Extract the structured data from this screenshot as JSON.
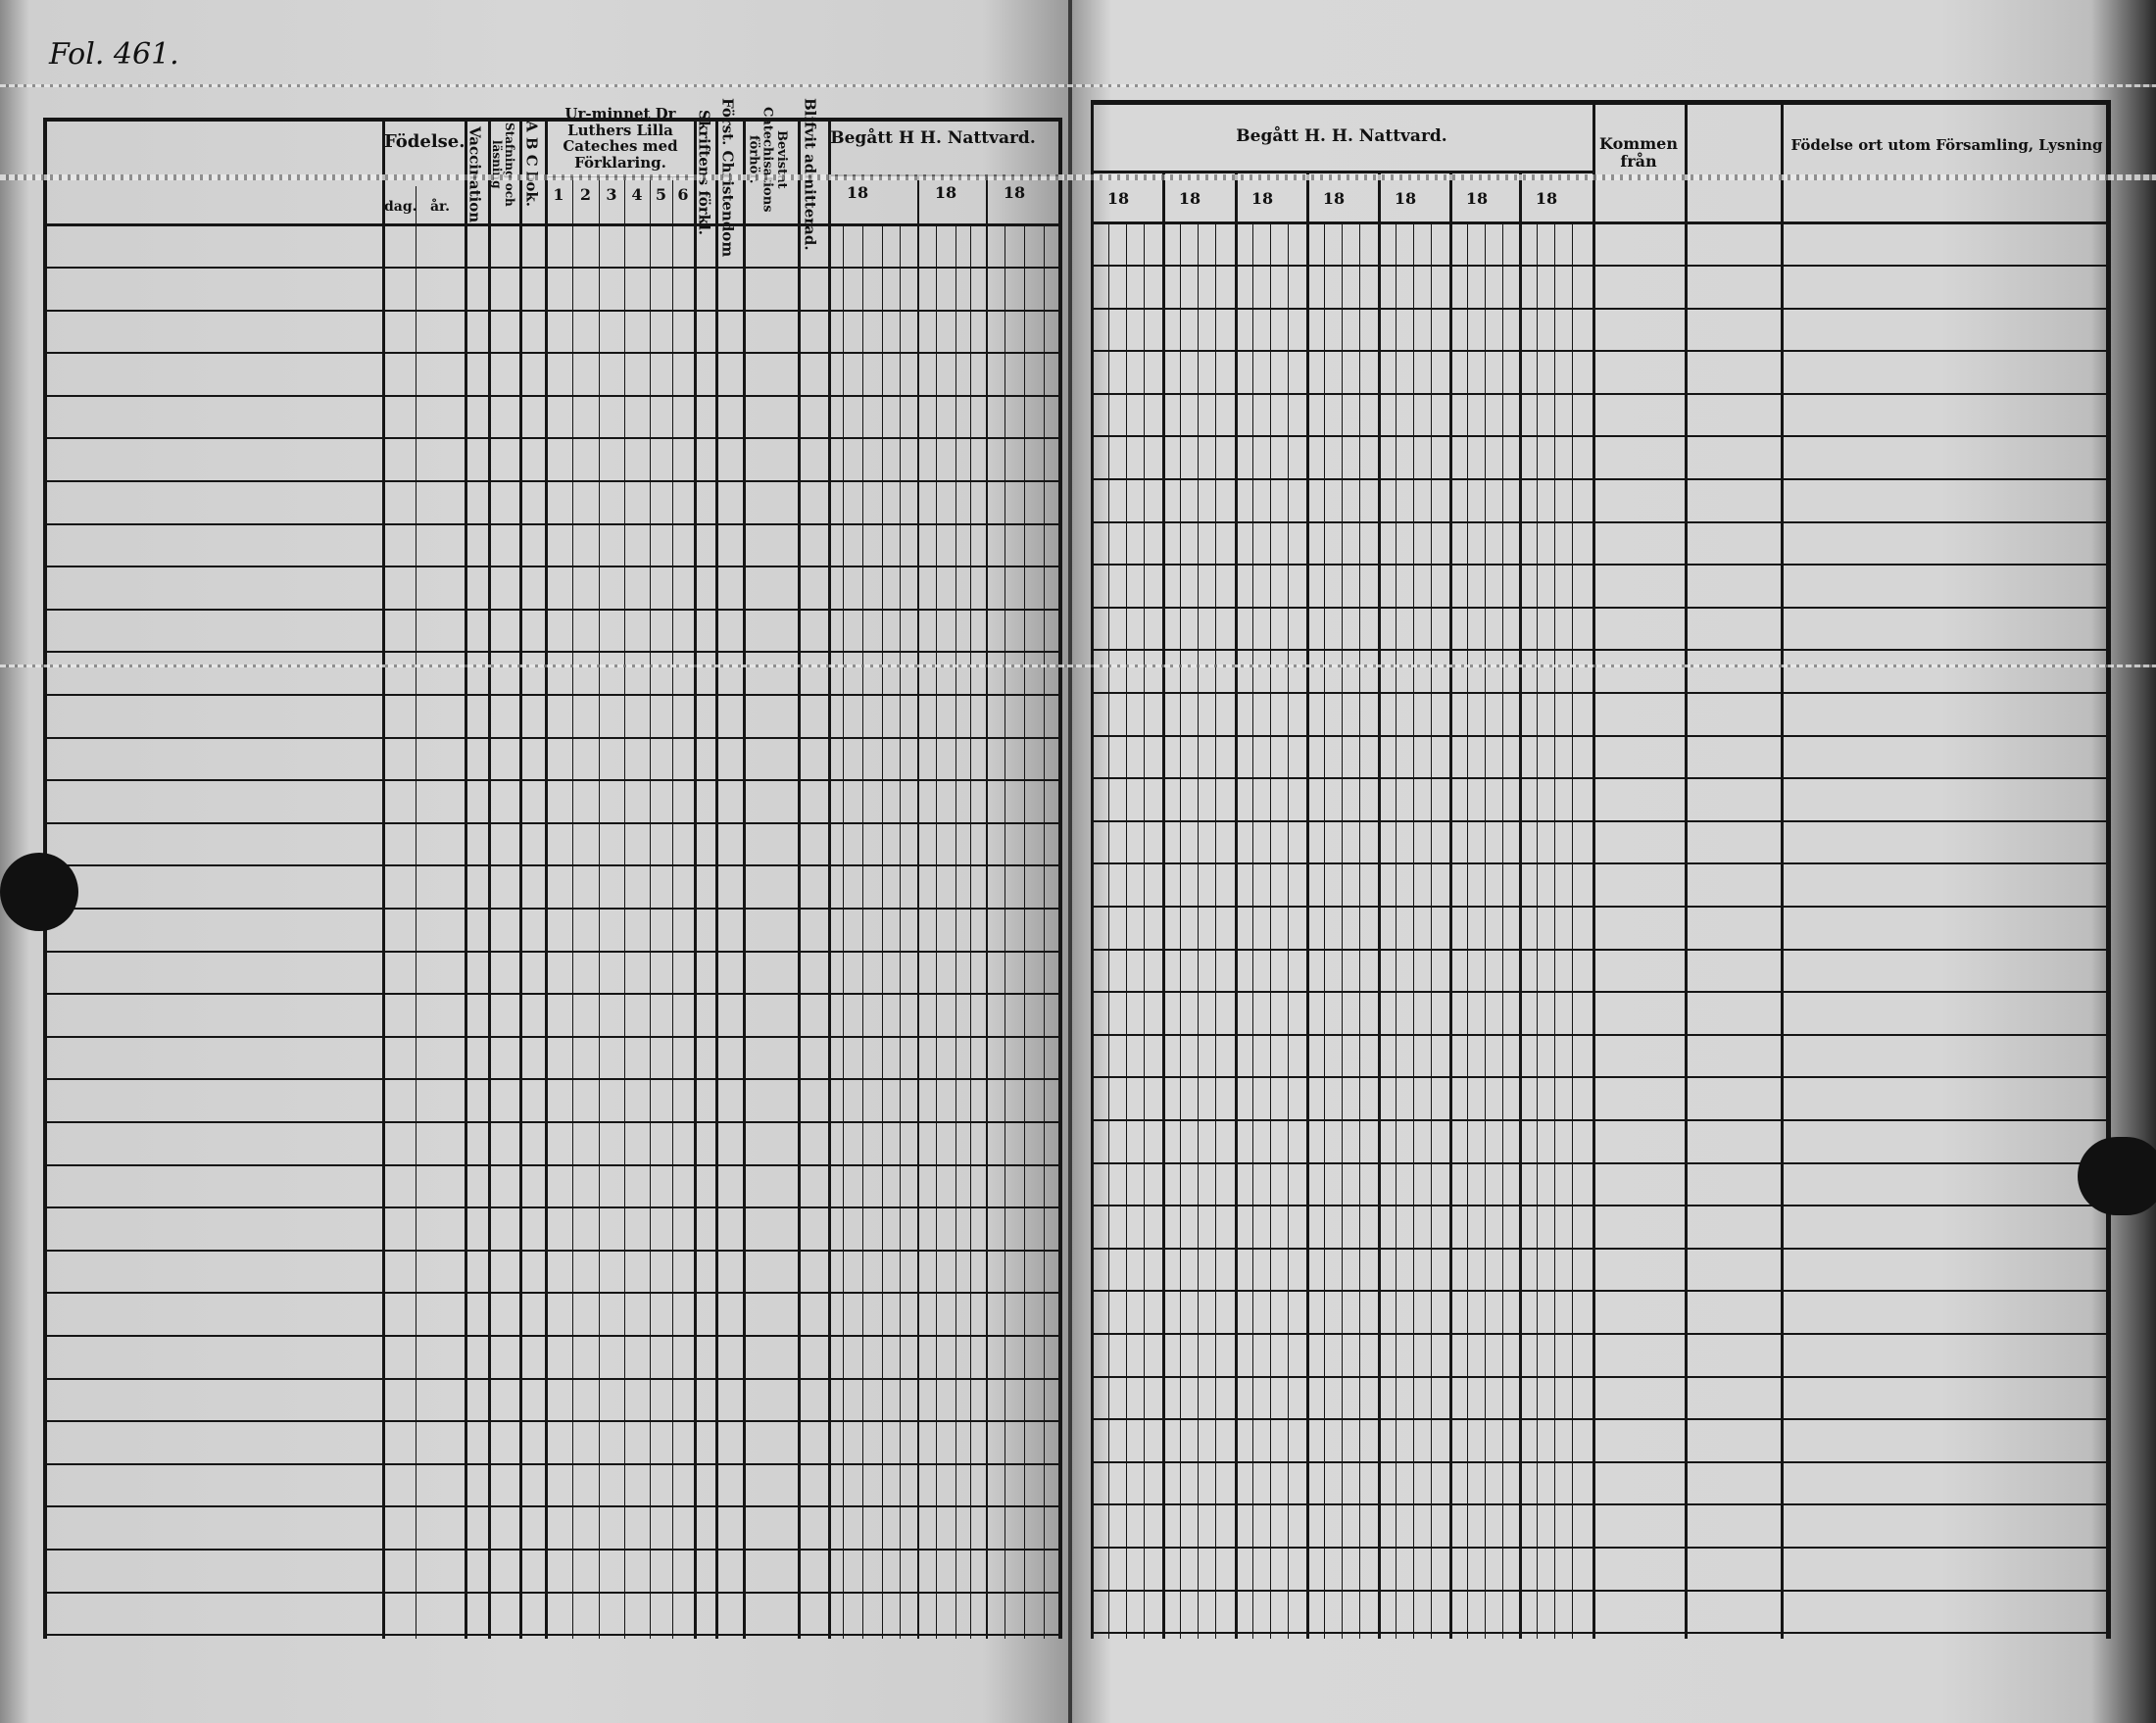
{
  "folio": "Fol. 461.",
  "left_page": {
    "headers": {
      "fodelse": "Födelse.",
      "dag": "dag.",
      "ar": "år.",
      "vaccination": "Vaccination",
      "stafning": "Stafning och läsning",
      "abc": "A B C bok.",
      "catechism": "Ur-minnet Dr Luthers Lilla Cateches med Förklaring.",
      "catechism_parts": [
        "1",
        "2",
        "3",
        "4",
        "5",
        "6"
      ],
      "skriftens": "Skriftens förkl.",
      "christendom": "Först. Christendom",
      "catechisation": "Bevistat Catechisations förhör.",
      "admitterad": "Blifvit admitterad.",
      "nattvard": "Begått H H. Nattvard.",
      "years": [
        "18",
        "18",
        "18"
      ]
    }
  },
  "right_page": {
    "headers": {
      "nattvard": "Begått H. H. Nattvard.",
      "years": [
        "18",
        "18",
        "18",
        "18",
        "18",
        "18",
        "18"
      ],
      "kommen": "Kommen från",
      "blank": "",
      "fodelseort": "Födelse ort utom Församling, Lysning"
    }
  },
  "colors": {
    "paper": "#d6d6d6",
    "ink": "#151515"
  }
}
